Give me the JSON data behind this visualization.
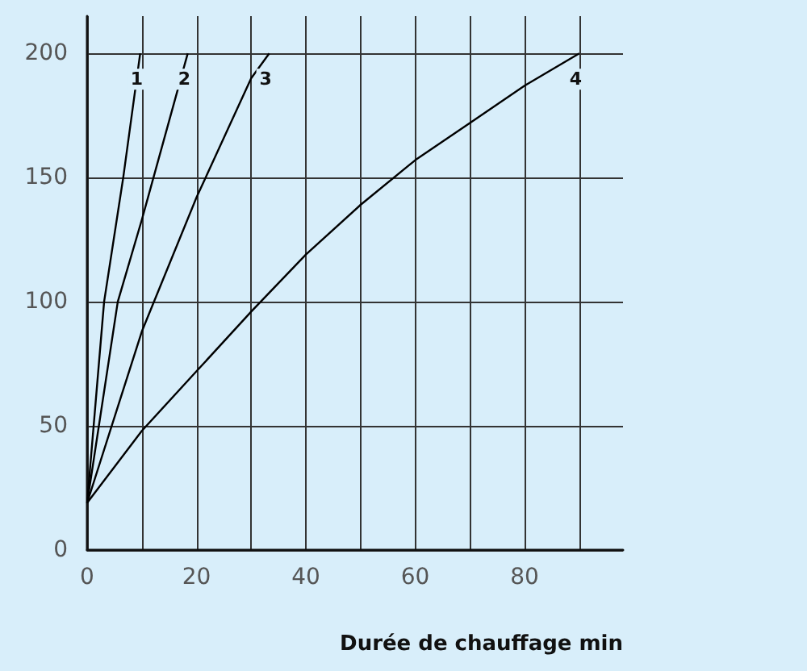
{
  "chart_data": {
    "type": "line",
    "xlabel": "Durée de chauffage min",
    "xlim": [
      0,
      98
    ],
    "ylim": [
      0,
      215
    ],
    "xticks": [
      0,
      {
        "value": 10,
        "label": null
      },
      20,
      {
        "value": 30,
        "label": null
      },
      40,
      {
        "value": 50,
        "label": null
      },
      60,
      {
        "value": 70,
        "label": null
      },
      80,
      {
        "value": 90,
        "label": null
      }
    ],
    "yticks": [
      0,
      50,
      100,
      150,
      200
    ],
    "grid": true,
    "marker": "none",
    "line_style": "solid",
    "series": [
      {
        "name": "1",
        "color": "#000000",
        "x": [
          0,
          3.1,
          6.6,
          9.7
        ],
        "values": [
          19,
          100,
          150,
          200
        ]
      },
      {
        "name": "2",
        "color": "#000000",
        "x": [
          0,
          5.6,
          10,
          18.4
        ],
        "values": [
          19,
          100,
          133,
          200
        ]
      },
      {
        "name": "3",
        "color": "#000000",
        "x": [
          0,
          10,
          20,
          30,
          33.3
        ],
        "values": [
          19,
          88,
          142,
          190,
          200
        ]
      },
      {
        "name": "4",
        "color": "#000000",
        "x": [
          0,
          10,
          20,
          30,
          40,
          50,
          60,
          70,
          80,
          90
        ],
        "values": [
          19,
          48,
          72,
          96,
          119,
          139,
          157,
          172,
          187,
          200
        ]
      }
    ]
  }
}
